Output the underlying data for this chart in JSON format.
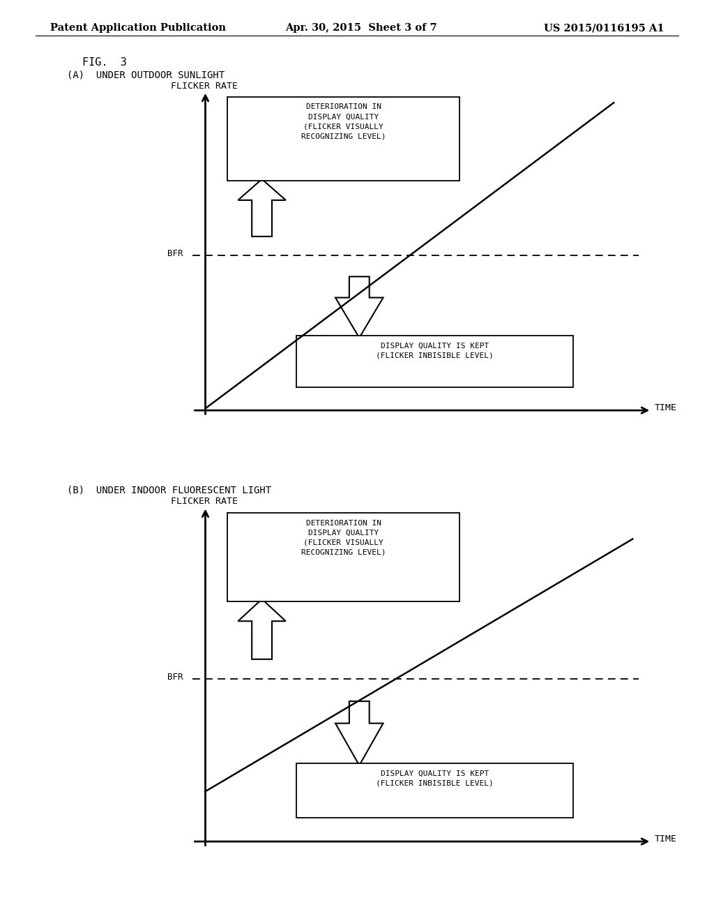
{
  "background_color": "#ffffff",
  "page_header_left": "Patent Application Publication",
  "page_header_mid": "Apr. 30, 2015  Sheet 3 of 7",
  "page_header_right": "US 2015/0116195 A1",
  "fig_label": "FIG.  3",
  "panel_a_label": "(A)  UNDER OUTDOOR SUNLIGHT",
  "panel_b_label": "(B)  UNDER INDOOR FLUORESCENT LIGHT",
  "ylabel": "FLICKER RATE",
  "xlabel": "TIME",
  "bfr_label": "BFR",
  "box1_text": "DETERIORATION IN\nDISPLAY QUALITY\n(FLICKER VISUALLY\nRECOGNIZING LEVEL)",
  "box2_text": "DISPLAY QUALITY IS KEPT\n(FLICKER INBISIBLE LEVEL)",
  "line_color": "#000000",
  "text_color": "#000000"
}
